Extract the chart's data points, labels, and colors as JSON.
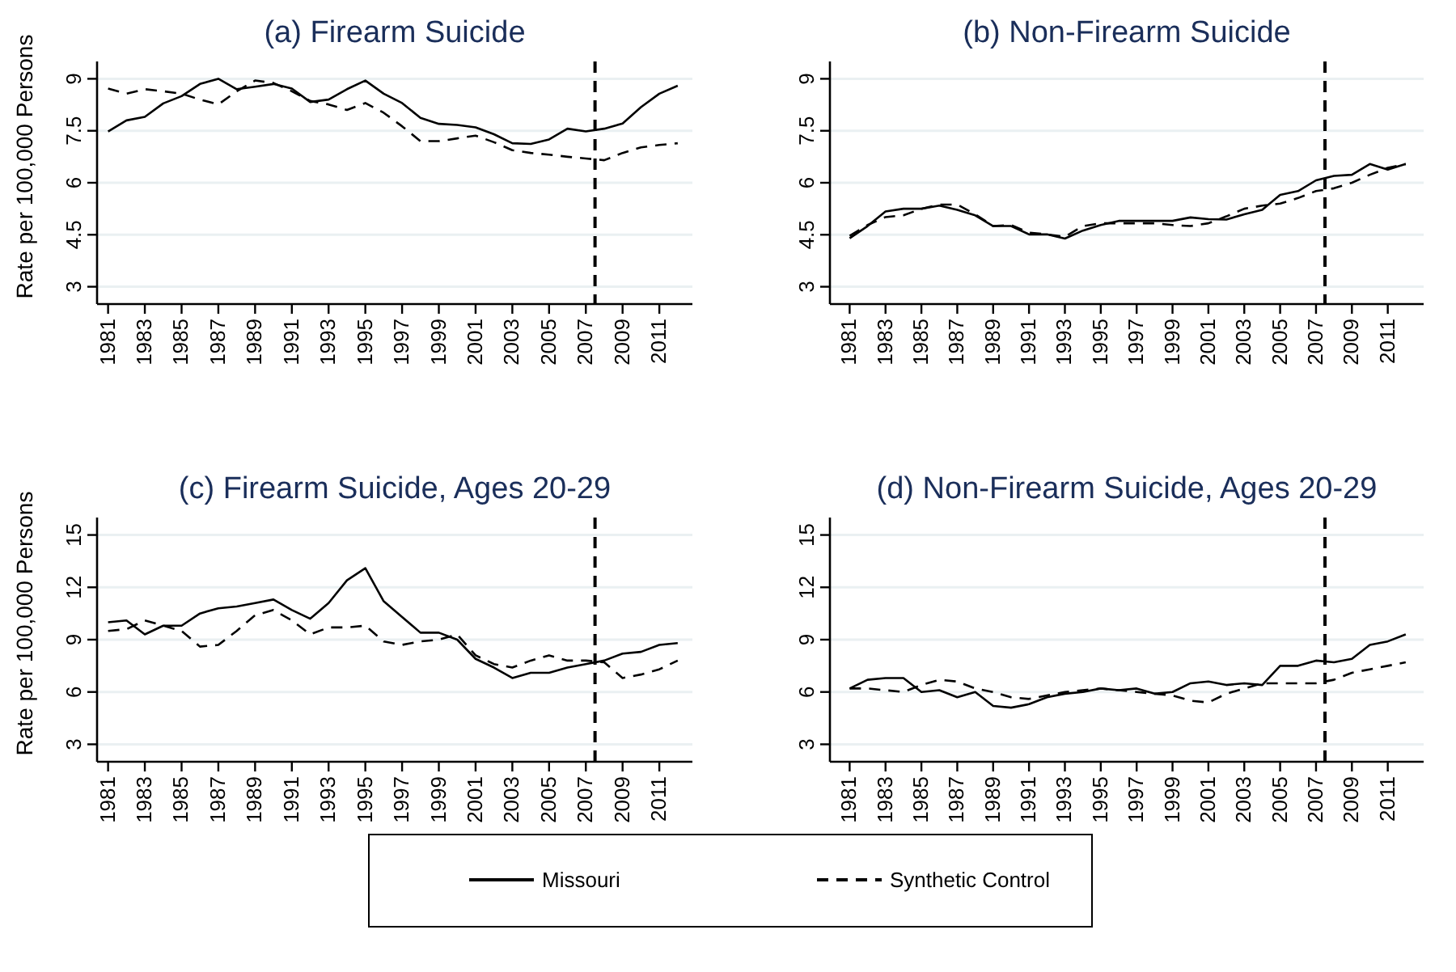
{
  "chart_data": [
    {
      "type": "line",
      "title": "(a) Firearm Suicide",
      "ylabel": "Rate per 100,000 Persons",
      "x": [
        1981,
        1982,
        1983,
        1984,
        1985,
        1986,
        1987,
        1988,
        1989,
        1990,
        1991,
        1992,
        1993,
        1994,
        1995,
        1996,
        1997,
        1998,
        1999,
        2000,
        2001,
        2002,
        2003,
        2004,
        2005,
        2006,
        2007,
        2008,
        2009,
        2010,
        2011,
        2012
      ],
      "xlim": [
        1980.4,
        2012.8
      ],
      "xticks": [
        1981,
        1983,
        1985,
        1987,
        1989,
        1991,
        1993,
        1995,
        1997,
        1999,
        2001,
        2003,
        2005,
        2007,
        2009,
        2011
      ],
      "ylim": [
        2.5,
        9.5
      ],
      "yticks": [
        3,
        4.5,
        6,
        7.5,
        9
      ],
      "grid": "y",
      "legend": "bottom",
      "ref_lines": [
        {
          "axis": "x",
          "value": 2007.5,
          "color": "#000000",
          "line_style": "dashed"
        }
      ],
      "series": [
        {
          "name": "Missouri",
          "color": "#000000",
          "line_style": "solid",
          "values": [
            7.48,
            7.8,
            7.9,
            8.29,
            8.5,
            8.85,
            9.0,
            8.7,
            8.77,
            8.85,
            8.72,
            8.33,
            8.4,
            8.7,
            8.95,
            8.57,
            8.3,
            7.87,
            7.7,
            7.67,
            7.6,
            7.4,
            7.14,
            7.12,
            7.25,
            7.56,
            7.48,
            7.56,
            7.71,
            8.18,
            8.57,
            8.8
          ]
        },
        {
          "name": "Synthetic Control",
          "color": "#000000",
          "line_style": "dashed",
          "values": [
            8.72,
            8.57,
            8.7,
            8.64,
            8.57,
            8.4,
            8.26,
            8.64,
            8.95,
            8.88,
            8.64,
            8.36,
            8.26,
            8.1,
            8.3,
            8.02,
            7.63,
            7.2,
            7.2,
            7.28,
            7.36,
            7.17,
            6.94,
            6.86,
            6.81,
            6.75,
            6.7,
            6.65,
            6.86,
            7.02,
            7.09,
            7.14
          ]
        }
      ]
    },
    {
      "type": "line",
      "title": "(b) Non-Firearm Suicide",
      "x": [
        1981,
        1982,
        1983,
        1984,
        1985,
        1986,
        1987,
        1988,
        1989,
        1990,
        1991,
        1992,
        1993,
        1994,
        1995,
        1996,
        1997,
        1998,
        1999,
        2000,
        2001,
        2002,
        2003,
        2004,
        2005,
        2006,
        2007,
        2008,
        2009,
        2010,
        2011,
        2012
      ],
      "xlim": [
        1979.9,
        2013
      ],
      "xticks": [
        1981,
        1983,
        1985,
        1987,
        1989,
        1991,
        1993,
        1995,
        1997,
        1999,
        2001,
        2003,
        2005,
        2007,
        2009,
        2011
      ],
      "ylim": [
        2.5,
        9.5
      ],
      "yticks": [
        3,
        4.5,
        6,
        7.5,
        9
      ],
      "grid": "y",
      "ref_lines": [
        {
          "axis": "x",
          "value": 2007.5,
          "color": "#000000",
          "line_style": "dashed"
        }
      ],
      "series": [
        {
          "color": "#000000",
          "line_style": "solid",
          "values": [
            4.4,
            4.75,
            5.17,
            5.25,
            5.25,
            5.34,
            5.22,
            5.06,
            4.75,
            4.75,
            4.51,
            4.51,
            4.39,
            4.62,
            4.78,
            4.9,
            4.9,
            4.9,
            4.9,
            5.0,
            4.95,
            4.94,
            5.09,
            5.22,
            5.65,
            5.76,
            6.07,
            6.2,
            6.23,
            6.54,
            6.38,
            6.54
          ]
        },
        {
          "color": "#000000",
          "line_style": "dashed",
          "values": [
            4.47,
            4.78,
            5.01,
            5.06,
            5.25,
            5.37,
            5.37,
            5.09,
            4.75,
            4.78,
            4.56,
            4.51,
            4.44,
            4.75,
            4.83,
            4.83,
            4.83,
            4.83,
            4.78,
            4.75,
            4.83,
            5.03,
            5.25,
            5.34,
            5.4,
            5.56,
            5.76,
            5.84,
            6.0,
            6.23,
            6.43,
            6.54
          ]
        }
      ]
    },
    {
      "type": "line",
      "title": "(c) Firearm Suicide, Ages 20-29",
      "ylabel": "Rate per 100,000 Persons",
      "x": [
        1981,
        1982,
        1983,
        1984,
        1985,
        1986,
        1987,
        1988,
        1989,
        1990,
        1991,
        1992,
        1993,
        1994,
        1995,
        1996,
        1997,
        1998,
        1999,
        2000,
        2001,
        2002,
        2003,
        2004,
        2005,
        2006,
        2007,
        2008,
        2009,
        2010,
        2011,
        2012
      ],
      "xlim": [
        1980.4,
        2012.8
      ],
      "xticks": [
        1981,
        1983,
        1985,
        1987,
        1989,
        1991,
        1993,
        1995,
        1997,
        1999,
        2001,
        2003,
        2005,
        2007,
        2009,
        2011
      ],
      "ylim": [
        2,
        16
      ],
      "yticks": [
        3,
        6,
        9,
        12,
        15
      ],
      "grid": "y",
      "ref_lines": [
        {
          "axis": "x",
          "value": 2007.5,
          "color": "#000000",
          "line_style": "dashed"
        }
      ],
      "series": [
        {
          "color": "#000000",
          "line_style": "solid",
          "values": [
            10.0,
            10.1,
            9.3,
            9.8,
            9.8,
            10.5,
            10.8,
            10.9,
            11.1,
            11.3,
            10.7,
            10.2,
            11.1,
            12.4,
            13.1,
            11.2,
            10.3,
            9.4,
            9.4,
            9.0,
            7.9,
            7.4,
            6.8,
            7.1,
            7.1,
            7.4,
            7.6,
            7.8,
            8.2,
            8.3,
            8.7,
            8.8
          ]
        },
        {
          "color": "#000000",
          "line_style": "dashed",
          "values": [
            9.5,
            9.6,
            10.1,
            9.8,
            9.5,
            8.6,
            8.7,
            9.5,
            10.4,
            10.7,
            10.1,
            9.3,
            9.7,
            9.7,
            9.8,
            8.9,
            8.7,
            8.9,
            9.0,
            9.3,
            8.1,
            7.6,
            7.4,
            7.8,
            8.1,
            7.8,
            7.8,
            7.7,
            6.8,
            7.0,
            7.3,
            7.8
          ]
        }
      ]
    },
    {
      "type": "line",
      "title": "(d) Non-Firearm Suicide, Ages 20-29",
      "x": [
        1981,
        1982,
        1983,
        1984,
        1985,
        1986,
        1987,
        1988,
        1989,
        1990,
        1991,
        1992,
        1993,
        1994,
        1995,
        1996,
        1997,
        1998,
        1999,
        2000,
        2001,
        2002,
        2003,
        2004,
        2005,
        2006,
        2007,
        2008,
        2009,
        2010,
        2011,
        2012
      ],
      "xlim": [
        1979.9,
        2013
      ],
      "xticks": [
        1981,
        1983,
        1985,
        1987,
        1989,
        1991,
        1993,
        1995,
        1997,
        1999,
        2001,
        2003,
        2005,
        2007,
        2009,
        2011
      ],
      "ylim": [
        2,
        16
      ],
      "yticks": [
        3,
        6,
        9,
        12,
        15
      ],
      "grid": "y",
      "ref_lines": [
        {
          "axis": "x",
          "value": 2007.5,
          "color": "#000000",
          "line_style": "dashed"
        }
      ],
      "series": [
        {
          "color": "#000000",
          "line_style": "solid",
          "values": [
            6.2,
            6.7,
            6.8,
            6.8,
            6.0,
            6.1,
            5.7,
            6.0,
            5.2,
            5.1,
            5.3,
            5.7,
            5.9,
            6.0,
            6.2,
            6.1,
            6.2,
            5.9,
            6.0,
            6.5,
            6.6,
            6.4,
            6.5,
            6.4,
            7.5,
            7.5,
            7.8,
            7.7,
            7.9,
            8.7,
            8.9,
            9.3
          ]
        },
        {
          "color": "#000000",
          "line_style": "dashed",
          "values": [
            6.2,
            6.2,
            6.1,
            6.0,
            6.4,
            6.7,
            6.6,
            6.2,
            6.0,
            5.7,
            5.6,
            5.8,
            6.0,
            6.1,
            6.2,
            6.1,
            6.0,
            5.9,
            5.8,
            5.5,
            5.4,
            5.9,
            6.2,
            6.5,
            6.5,
            6.5,
            6.5,
            6.7,
            7.1,
            7.3,
            7.5,
            7.7
          ]
        }
      ]
    }
  ]
}
